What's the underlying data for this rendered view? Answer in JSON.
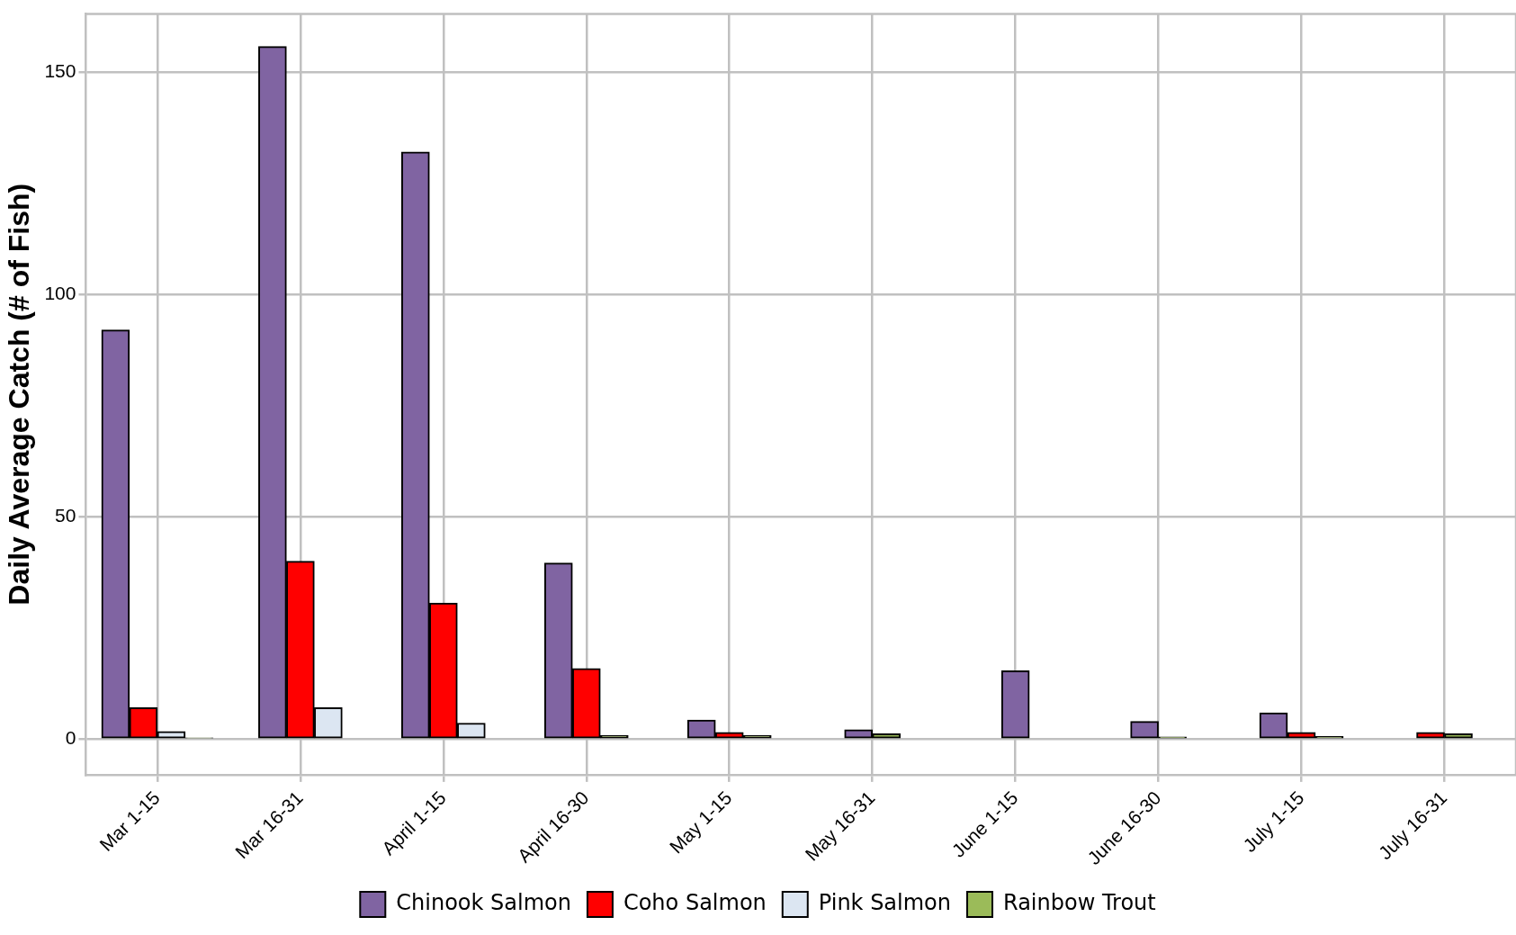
{
  "chart_data": {
    "type": "bar",
    "ylabel": "Daily Average Catch (# of Fish)",
    "categories": [
      "Mar 1-15",
      "Mar 16-31",
      "April 1-15",
      "April 16-30",
      "May 1-15",
      "May 16-31",
      "June 1-15",
      "June 16-30",
      "July 1-15",
      "July 16-31"
    ],
    "series": [
      {
        "name": "Chinook Salmon",
        "color": "#8064a2",
        "values": [
          92,
          155.7,
          132,
          39.6,
          4.3,
          2.1,
          15.4,
          4.0,
          5.9,
          null
        ]
      },
      {
        "name": "Coho Salmon",
        "color": "#ff0000",
        "values": [
          7.1,
          40,
          30.6,
          15.9,
          1.5,
          null,
          null,
          null,
          1.5,
          1.5
        ]
      },
      {
        "name": "Pink Salmon",
        "color": "#dce6f2",
        "values": [
          1.7,
          7.1,
          3.6,
          null,
          null,
          null,
          null,
          null,
          null,
          null
        ]
      },
      {
        "name": "Rainbow Trout",
        "color": "#9bbb59",
        "values": [
          0.3,
          null,
          null,
          0.8,
          0.8,
          1.2,
          null,
          0.5,
          0.6,
          1.2
        ]
      }
    ],
    "ylim": [
      -8,
      163
    ],
    "yticks": [
      0,
      50,
      100,
      150
    ],
    "grid": true,
    "legend": "bottom"
  }
}
